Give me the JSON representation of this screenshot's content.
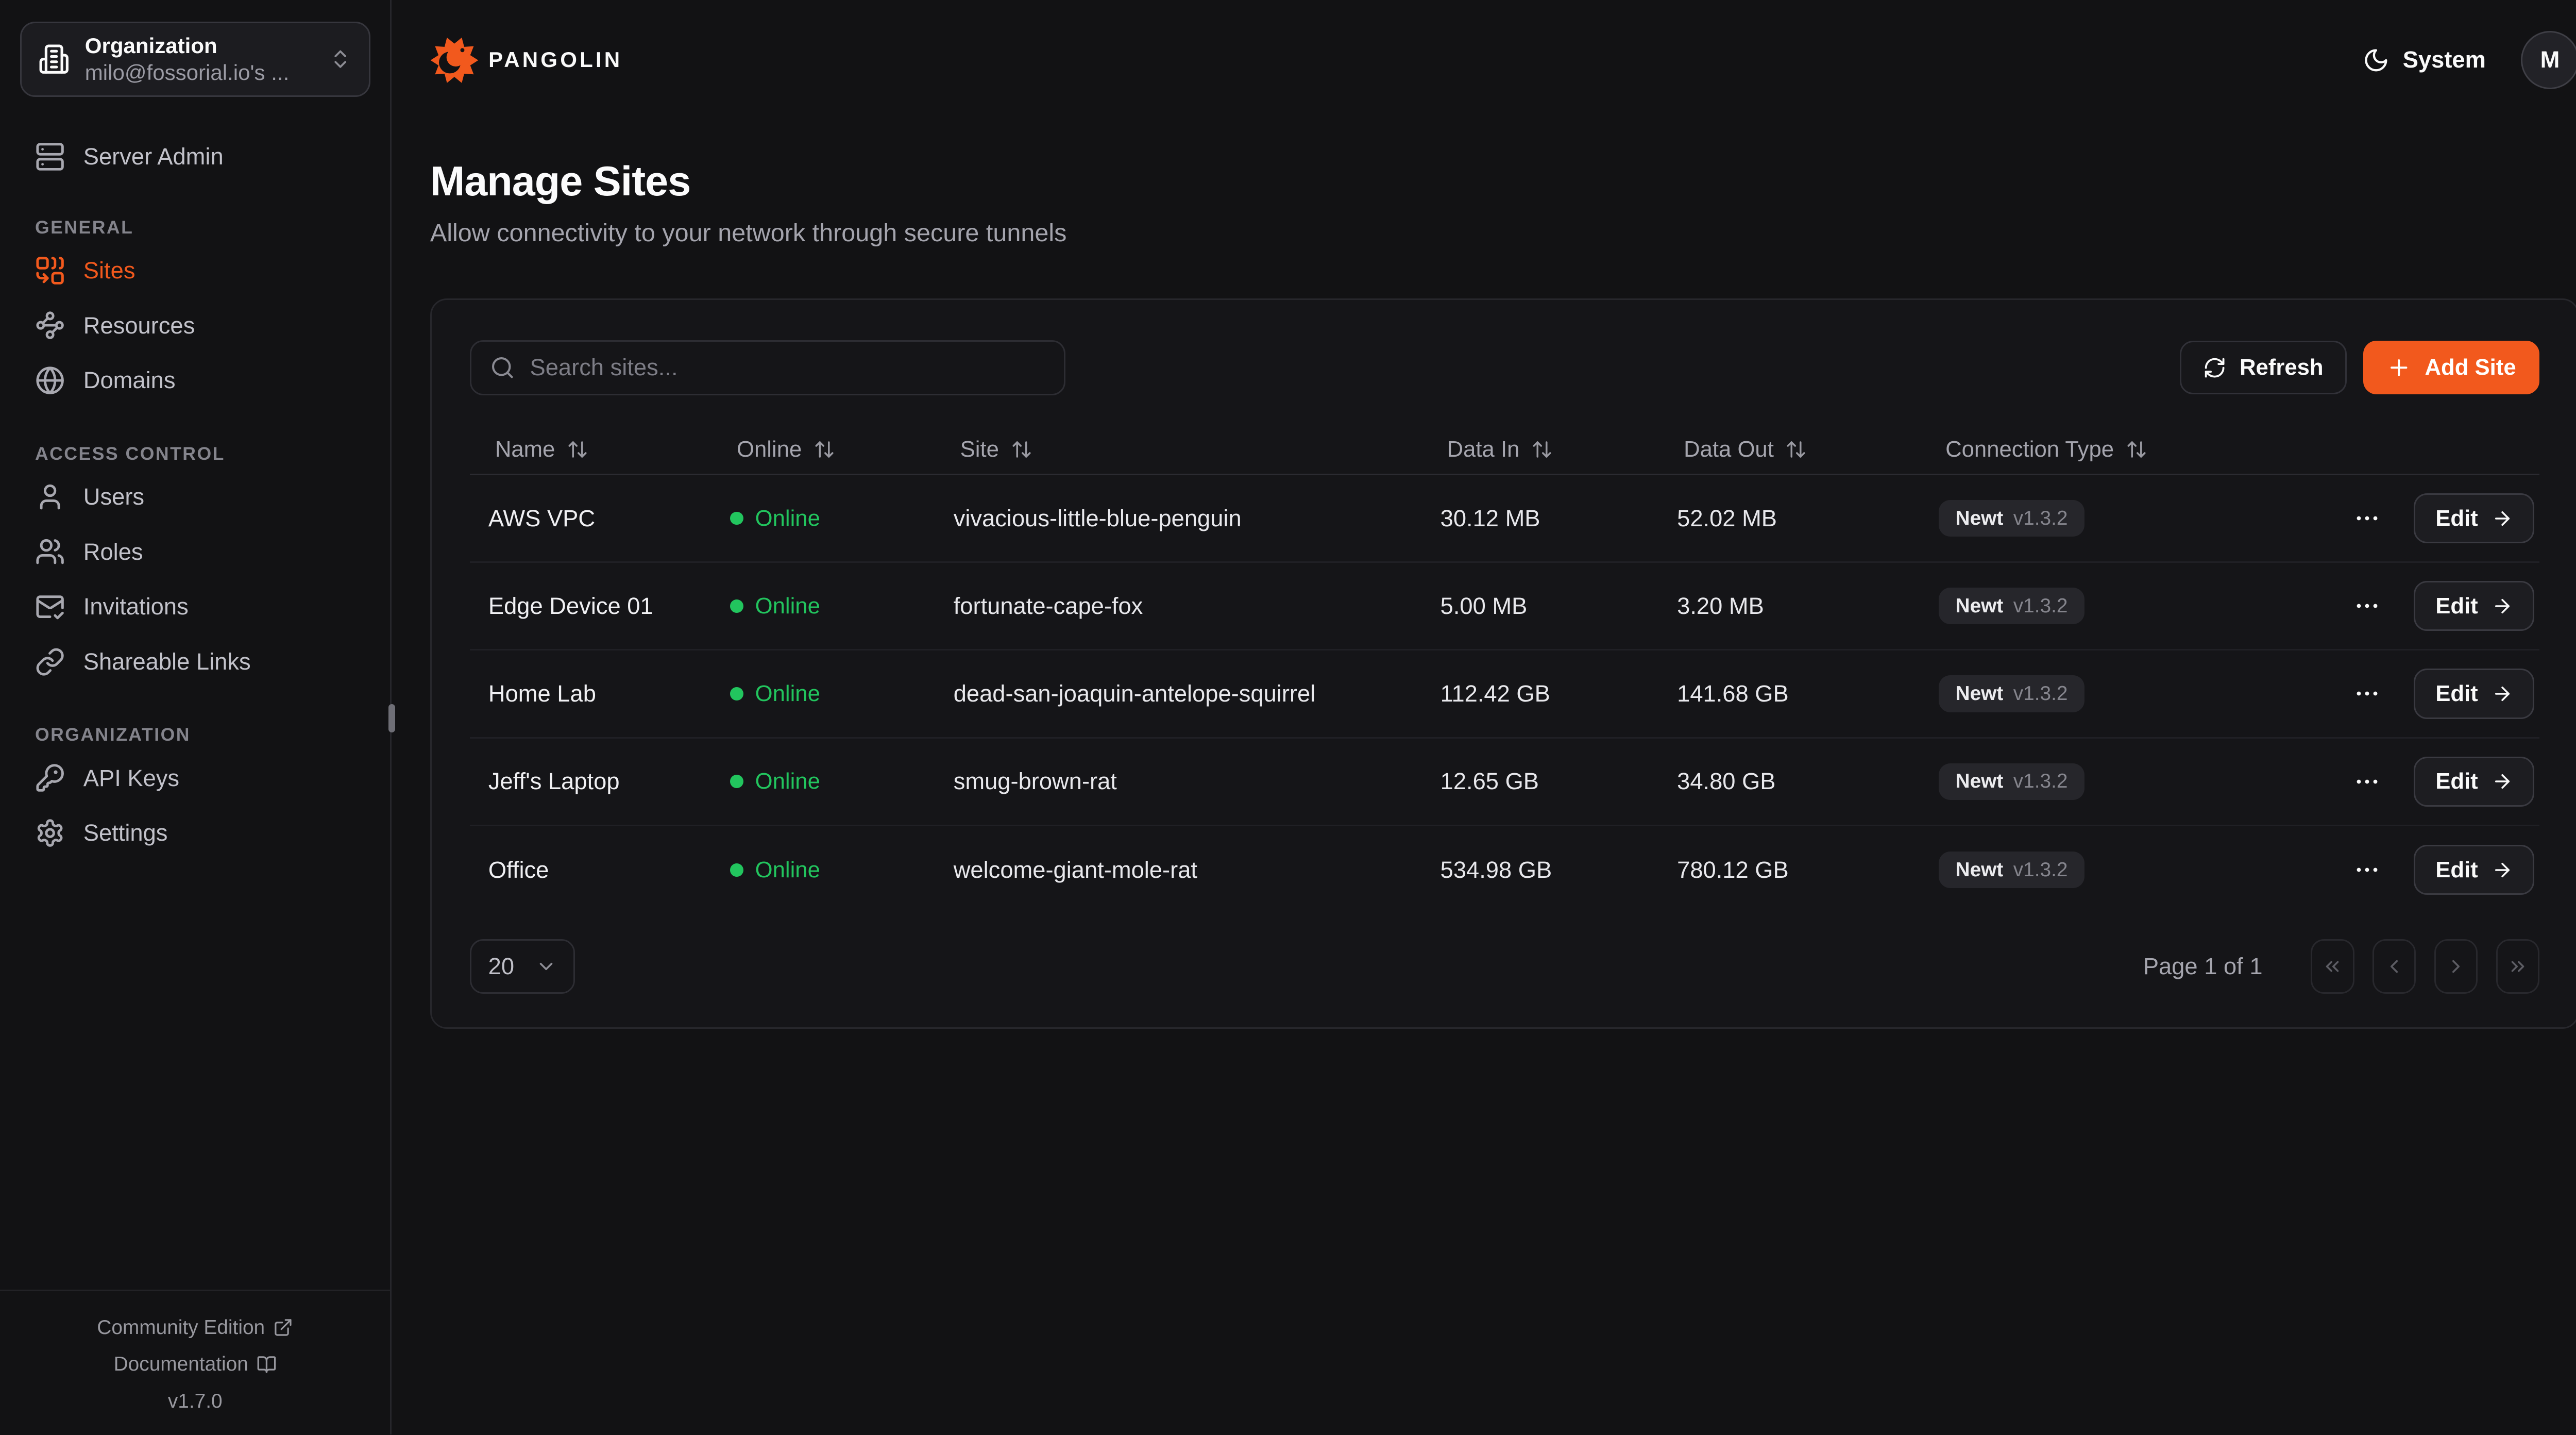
{
  "brand": {
    "name": "PANGOLIN"
  },
  "org_selector": {
    "label": "Organization",
    "value": "milo@fossorial.io's ...",
    "icon": "building"
  },
  "topbar": {
    "theme_label": "System",
    "avatar_initial": "M"
  },
  "sidebar": {
    "server_admin": {
      "label": "Server Admin",
      "icon": "server"
    },
    "sections": [
      {
        "label": "GENERAL",
        "items": [
          {
            "label": "Sites",
            "icon": "combine",
            "active": true
          },
          {
            "label": "Resources",
            "icon": "waypoints",
            "active": false
          },
          {
            "label": "Domains",
            "icon": "globe",
            "active": false
          }
        ]
      },
      {
        "label": "ACCESS CONTROL",
        "items": [
          {
            "label": "Users",
            "icon": "user",
            "active": false
          },
          {
            "label": "Roles",
            "icon": "users",
            "active": false
          },
          {
            "label": "Invitations",
            "icon": "mail-check",
            "active": false
          },
          {
            "label": "Shareable Links",
            "icon": "link",
            "active": false
          }
        ]
      },
      {
        "label": "ORGANIZATION",
        "items": [
          {
            "label": "API Keys",
            "icon": "key",
            "active": false
          },
          {
            "label": "Settings",
            "icon": "settings",
            "active": false
          }
        ]
      }
    ],
    "footer": {
      "community": "Community Edition",
      "docs": "Documentation",
      "version": "v1.7.0"
    }
  },
  "page": {
    "title": "Manage Sites",
    "subtitle": "Allow connectivity to your network through secure tunnels"
  },
  "toolbar": {
    "search_placeholder": "Search sites...",
    "refresh_label": "Refresh",
    "add_site_label": "Add Site"
  },
  "table": {
    "columns": [
      "Name",
      "Online",
      "Site",
      "Data In",
      "Data Out",
      "Connection Type"
    ],
    "edit_label": "Edit",
    "rows": [
      {
        "name": "AWS VPC",
        "status": "Online",
        "site": "vivacious-little-blue-penguin",
        "data_in": "30.12 MB",
        "data_out": "52.02 MB",
        "connection_type": "Newt",
        "version": "v1.3.2"
      },
      {
        "name": "Edge Device 01",
        "status": "Online",
        "site": "fortunate-cape-fox",
        "data_in": "5.00 MB",
        "data_out": "3.20 MB",
        "connection_type": "Newt",
        "version": "v1.3.2"
      },
      {
        "name": "Home Lab",
        "status": "Online",
        "site": "dead-san-joaquin-antelope-squirrel",
        "data_in": "112.42 GB",
        "data_out": "141.68 GB",
        "connection_type": "Newt",
        "version": "v1.3.2"
      },
      {
        "name": "Jeff's Laptop",
        "status": "Online",
        "site": "smug-brown-rat",
        "data_in": "12.65 GB",
        "data_out": "34.80 GB",
        "connection_type": "Newt",
        "version": "v1.3.2"
      },
      {
        "name": "Office",
        "status": "Online",
        "site": "welcome-giant-mole-rat",
        "data_in": "534.98 GB",
        "data_out": "780.12 GB",
        "connection_type": "Newt",
        "version": "v1.3.2"
      }
    ]
  },
  "pagination": {
    "page_size": "20",
    "summary": "Page 1 of 1",
    "buttons": [
      {
        "name": "first-page-button",
        "icon": "chevrons-left"
      },
      {
        "name": "prev-page-button",
        "icon": "chevron-left"
      },
      {
        "name": "next-page-button",
        "icon": "chevron-right"
      },
      {
        "name": "last-page-button",
        "icon": "chevrons-right"
      }
    ]
  },
  "colors": {
    "accent": "#F2591D",
    "online_green": "#22C55E"
  }
}
